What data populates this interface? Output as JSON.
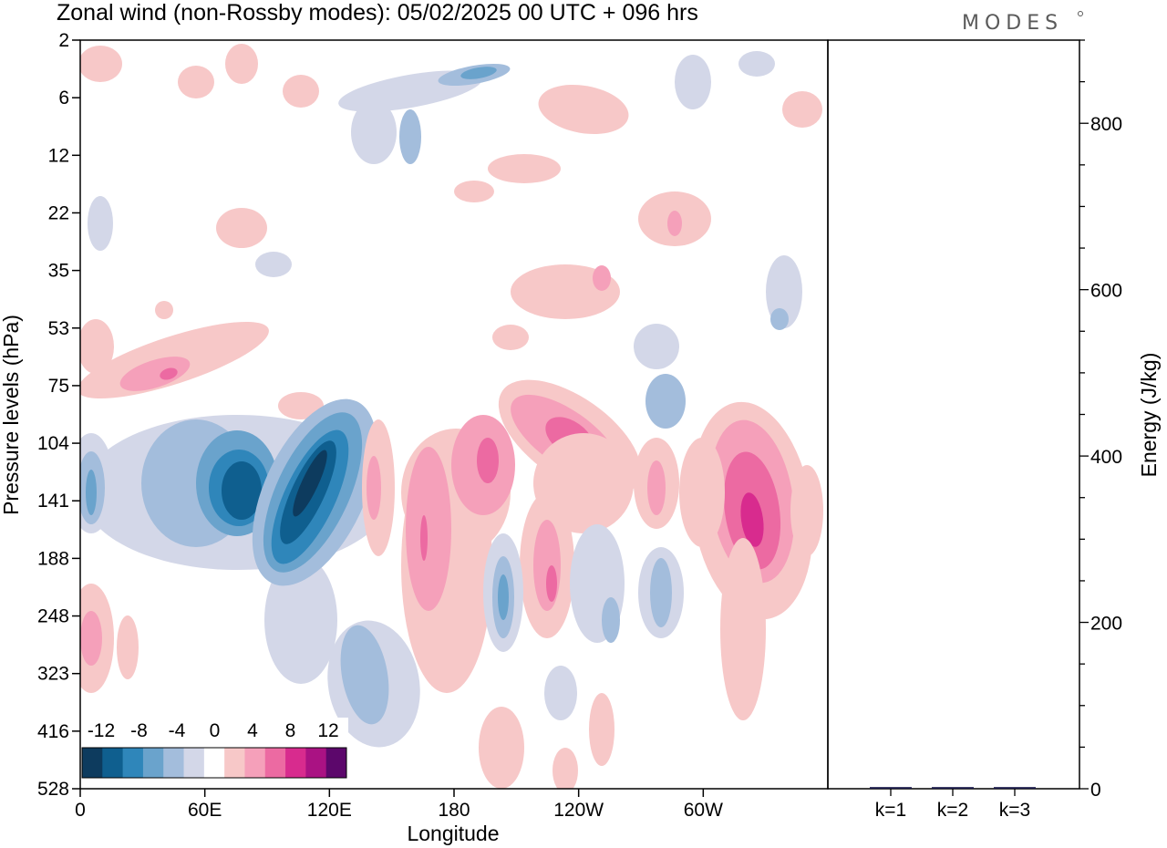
{
  "title": "Zonal wind (non-Rossby modes):  05/02/2025  00 UTC  + 096 hrs",
  "logo": "MODES",
  "chart_data": [
    {
      "type": "heatmap",
      "variable": "Zonal wind (non-Rossby modes)",
      "xlabel": "Longitude",
      "ylabel": "Pressure levels (hPa)",
      "x_ticks": [
        "0",
        "60E",
        "120E",
        "180",
        "120W",
        "60W"
      ],
      "x_tick_values": [
        0,
        60,
        120,
        180,
        240,
        300
      ],
      "xlim": [
        0,
        360
      ],
      "y_ticks": [
        "2",
        "6",
        "12",
        "22",
        "35",
        "53",
        "75",
        "104",
        "141",
        "188",
        "248",
        "323",
        "416",
        "528"
      ],
      "y_scale": "categorical pressure levels, top to bottom",
      "colorbar": {
        "tick_labels": [
          "-12",
          "-8",
          "-4",
          "0",
          "4",
          "8",
          "12"
        ],
        "levels": [
          -14,
          -12,
          -10,
          -8,
          -6,
          -4,
          -2,
          2,
          4,
          6,
          8,
          10,
          12,
          14
        ],
        "colors": [
          "#0d3b5e",
          "#0f5f8f",
          "#2f86ba",
          "#6aa3cc",
          "#a3bddc",
          "#d3d7e8",
          "#ffffff",
          "#f7c8c8",
          "#f5a0ba",
          "#ec6aa2",
          "#d82b8e",
          "#aa1283",
          "#5c076b"
        ],
        "placement": "bottom-left inset"
      },
      "features": [
        {
          "lon": 58,
          "level": "141",
          "sign": "negative",
          "peak": -10
        },
        {
          "lon": 96,
          "level": "141",
          "sign": "negative",
          "peak": -14
        },
        {
          "lon": 190,
          "level": "104",
          "sign": "positive",
          "peak": 8
        },
        {
          "lon": 230,
          "level": "104",
          "sign": "positive",
          "peak": 10
        },
        {
          "lon": 323,
          "level": "141",
          "sign": "positive",
          "peak": 12
        },
        {
          "lon": 205,
          "level": "6",
          "sign": "negative",
          "peak": -6
        },
        {
          "lon": 35,
          "level": "75",
          "sign": "positive",
          "peak": 8
        },
        {
          "lon": 200,
          "level": "248",
          "sign": "negative",
          "peak": -6
        }
      ]
    },
    {
      "type": "bar",
      "ylabel": "Energy (J/kg)",
      "categories": [
        "k=1",
        "k=2",
        "k=3"
      ],
      "values": [
        2,
        2,
        2
      ],
      "ylim": [
        0,
        900
      ],
      "y_ticks": [
        0,
        200,
        400,
        600,
        800
      ],
      "bar_color": "#1a1a4a"
    }
  ]
}
